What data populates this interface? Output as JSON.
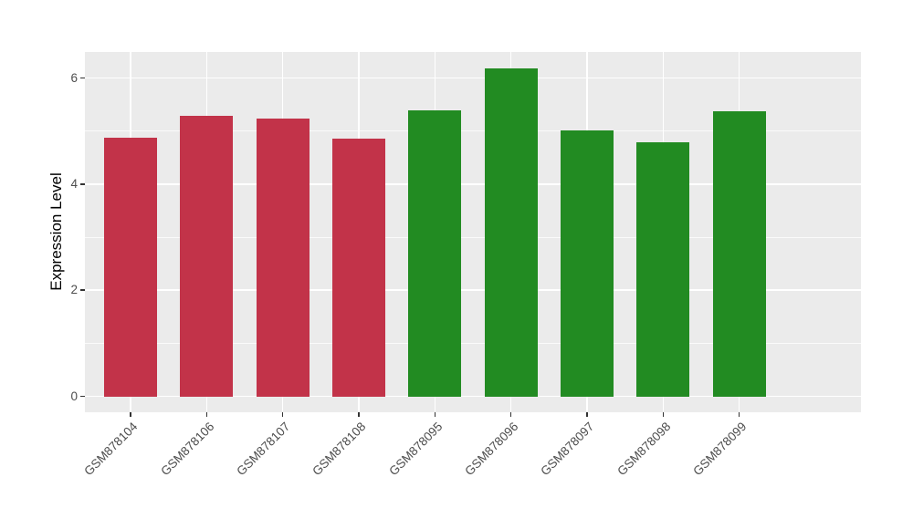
{
  "chart_data": {
    "type": "bar",
    "title": "",
    "xlabel": "",
    "ylabel": "Expression Level",
    "categories": [
      "GSM878104",
      "GSM878106",
      "GSM878107",
      "GSM878108",
      "GSM878095",
      "GSM878096",
      "GSM878097",
      "GSM878098",
      "GSM878099"
    ],
    "values": [
      4.87,
      5.29,
      5.24,
      4.85,
      5.39,
      6.18,
      5.01,
      4.78,
      5.38
    ],
    "bar_colors": [
      "#C23349",
      "#C23349",
      "#C23349",
      "#C23349",
      "#228B22",
      "#228B22",
      "#228B22",
      "#228B22",
      "#228B22"
    ],
    "group_colors": {
      "red_group": "#C23349",
      "green_group": "#228B22"
    },
    "yticks": [
      0,
      2,
      4,
      6
    ],
    "yticks_minor": [
      1,
      3,
      5
    ],
    "ylim": [
      -0.3,
      6.49
    ],
    "bar_width_frac": 0.7,
    "x_label_angle_deg": 45,
    "grid": true,
    "legend": false,
    "panel_bg": "#EBEBEB",
    "grid_color": "#FFFFFF",
    "tick_mark_color": "#333333",
    "axis_text_color": "#4D4D4D",
    "axis_title_color": "#000000",
    "background": "#FFFFFF"
  }
}
